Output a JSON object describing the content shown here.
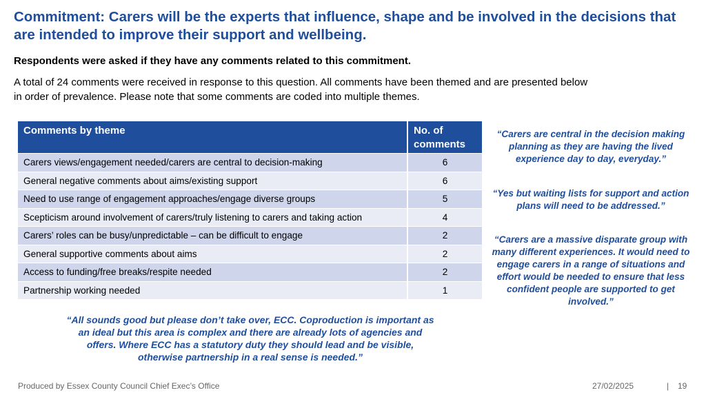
{
  "title": "Commitment: Carers will be the experts that influence, shape and be involved in the decisions that are intended to improve their support and wellbeing.",
  "subtitle": "Respondents were asked if they have any comments related to this commitment.",
  "intro": "A total of 24 comments were received in response to this question. All comments have been themed and are presented below in order of prevalence. Please note that some comments are coded into multiple themes.",
  "table": {
    "headers": [
      "Comments by theme",
      "No. of comments"
    ],
    "rows": [
      {
        "theme": "Carers views/engagement needed/carers are central to decision-making",
        "count": "6"
      },
      {
        "theme": "General negative comments about aims/existing support",
        "count": "6"
      },
      {
        "theme": "Need to use range of engagement approaches/engage diverse groups",
        "count": "5"
      },
      {
        "theme": "Scepticism around involvement of carers/truly listening to carers and taking action",
        "count": "4"
      },
      {
        "theme": "Carers’ roles can be busy/unpredictable – can be difficult to engage",
        "count": "2"
      },
      {
        "theme": "General supportive comments about aims",
        "count": "2"
      },
      {
        "theme": "Access to funding/free breaks/respite needed",
        "count": "2"
      },
      {
        "theme": "Partnership working needed",
        "count": "1"
      }
    ]
  },
  "quotes": [
    "“Carers are central in the decision making planning as they are having the lived experience day to day, everyday.”",
    "“Yes but waiting lists for support and action plans will need to be addressed.”",
    "“Carers are a massive disparate group with many different experiences. It would need to engage carers in a range of situations and effort would be needed to ensure that less confident people are supported to get involved.”",
    "“All sounds good but please don’t take over, ECC. Coproduction is important as an ideal but this area is complex and there are already lots of agencies and offers. Where ECC has a statutory duty they should lead and be visible, otherwise partnership in a real sense is needed.”"
  ],
  "footer": {
    "producer": "Produced by Essex County Council Chief Exec’s Office",
    "date": "27/02/2025",
    "separator": "|",
    "page": "19"
  }
}
